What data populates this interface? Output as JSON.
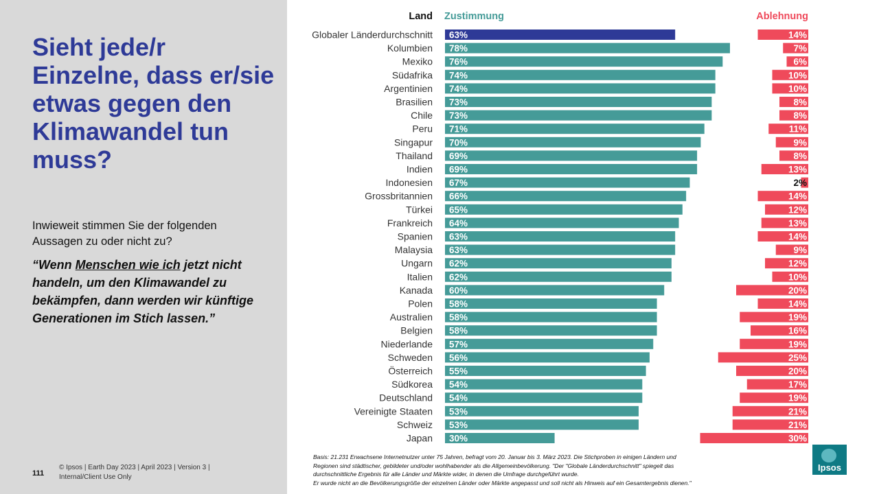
{
  "slide": {
    "title": "Sieht jede/r Einzelne, dass er/sie etwas gegen den Klimawandel tun muss?",
    "question": "Inwieweit stimmen Sie der folgenden Aussagen zu oder nicht zu?",
    "quote_pre": "“Wenn ",
    "quote_underlined": "Menschen wie ich",
    "quote_post": " jetzt nicht handeln, um den Klimawandel zu bekämpfen, dann werden wir künftige Generationen im Stich lassen.”",
    "page_number": "111",
    "footer_line1": "© Ipsos | Earth Day 2023 | April 2023 | Version 3 |",
    "footer_line2": "Internal/Client Use Only",
    "basis_line1": "Basis: 21.231 Erwachsene Internetnutzer unter 75 Jahren, befragt vom 20. Januar bis 3. März 2023. Die Stichproben in einigen Ländern und",
    "basis_line2": "Regionen sind städtischer, gebildeter und/oder wohlhabender als die Allgemeinbevölkerung. \"Der \"Globale Länderdurchschnitt\" spiegelt das",
    "basis_line3": "durchschnittliche Ergebnis für alle Länder und Märkte wider, in denen die Umfrage durchgeführt wurde.",
    "basis_line4": "Er wurde nicht an die Bevölkerungsgröße der einzelnen Länder oder Märkte angepasst und soll nicht als Hinweis auf ein Gesamtergebnis dienen.\"",
    "logo_text": "Ipsos"
  },
  "colors": {
    "agree": "#459b98",
    "global": "#2e3a97",
    "disagree": "#ef4a5b",
    "title": "#2e3a97",
    "panel": "#d9d9d9"
  },
  "chart_data": {
    "type": "bar",
    "header_country": "Land",
    "header_agree": "Zustimmung",
    "header_disagree": "Ablehnung",
    "categories": [
      "Globaler Länderdurchschnitt",
      "Kolumbien",
      "Mexiko",
      "Südafrika",
      "Argentinien",
      "Brasilien",
      "Chile",
      "Peru",
      "Singapur",
      "Thailand",
      "Indien",
      "Indonesien",
      "Grossbritannien",
      "Türkei",
      "Frankreich",
      "Spanien",
      "Malaysia",
      "Ungarn",
      "Italien",
      "Kanada",
      "Polen",
      "Australien",
      "Belgien",
      "Niederlande",
      "Schweden",
      "Österreich",
      "Südkorea",
      "Deutschland",
      "Vereinigte Staaten",
      "Schweiz",
      "Japan"
    ],
    "series": [
      {
        "name": "Zustimmung",
        "values": [
          63,
          78,
          76,
          74,
          74,
          73,
          73,
          71,
          70,
          69,
          69,
          67,
          66,
          65,
          64,
          63,
          63,
          62,
          62,
          60,
          58,
          58,
          58,
          57,
          56,
          55,
          54,
          54,
          53,
          53,
          30
        ]
      },
      {
        "name": "Ablehnung",
        "values": [
          14,
          7,
          6,
          10,
          10,
          8,
          8,
          11,
          9,
          8,
          13,
          2,
          14,
          12,
          13,
          14,
          9,
          12,
          10,
          20,
          14,
          19,
          16,
          19,
          25,
          20,
          17,
          19,
          21,
          21,
          30
        ]
      }
    ],
    "unit": "%"
  }
}
